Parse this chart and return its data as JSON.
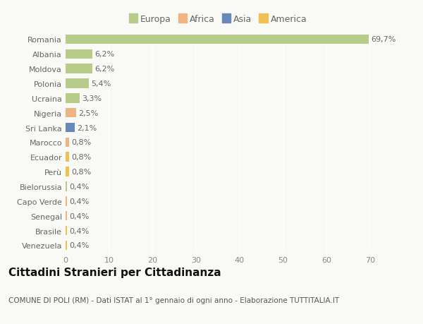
{
  "categories": [
    "Venezuela",
    "Brasile",
    "Senegal",
    "Capo Verde",
    "Bielorussia",
    "Perù",
    "Ecuador",
    "Marocco",
    "Sri Lanka",
    "Nigeria",
    "Ucraina",
    "Polonia",
    "Moldova",
    "Albania",
    "Romania"
  ],
  "values": [
    0.4,
    0.4,
    0.4,
    0.4,
    0.4,
    0.8,
    0.8,
    0.8,
    2.1,
    2.5,
    3.3,
    5.4,
    6.2,
    6.2,
    69.7
  ],
  "labels": [
    "0,4%",
    "0,4%",
    "0,4%",
    "0,4%",
    "0,4%",
    "0,8%",
    "0,8%",
    "0,8%",
    "2,1%",
    "2,5%",
    "3,3%",
    "5,4%",
    "6,2%",
    "6,2%",
    "69,7%"
  ],
  "colors": [
    "#f0c050",
    "#f0c050",
    "#f0b482",
    "#f0b482",
    "#b8cc8a",
    "#f0c050",
    "#f0c050",
    "#f0b482",
    "#6688bb",
    "#f0b482",
    "#b8cc8a",
    "#b8cc8a",
    "#b8cc8a",
    "#b8cc8a",
    "#b8cc8a"
  ],
  "legend_labels": [
    "Europa",
    "Africa",
    "Asia",
    "America"
  ],
  "legend_colors": [
    "#b8cc8a",
    "#f0b482",
    "#6688bb",
    "#f0c050"
  ],
  "title": "Cittadini Stranieri per Cittadinanza",
  "subtitle": "COMUNE DI POLI (RM) - Dati ISTAT al 1° gennaio di ogni anno - Elaborazione TUTTITALIA.IT",
  "xlim": [
    0,
    70
  ],
  "xticks": [
    0,
    10,
    20,
    30,
    40,
    50,
    60,
    70
  ],
  "background_color": "#f9f9f6",
  "grid_color": "#ffffff",
  "bar_height": 0.65,
  "title_fontsize": 11,
  "subtitle_fontsize": 7.5,
  "label_fontsize": 8,
  "tick_fontsize": 8,
  "legend_fontsize": 9
}
